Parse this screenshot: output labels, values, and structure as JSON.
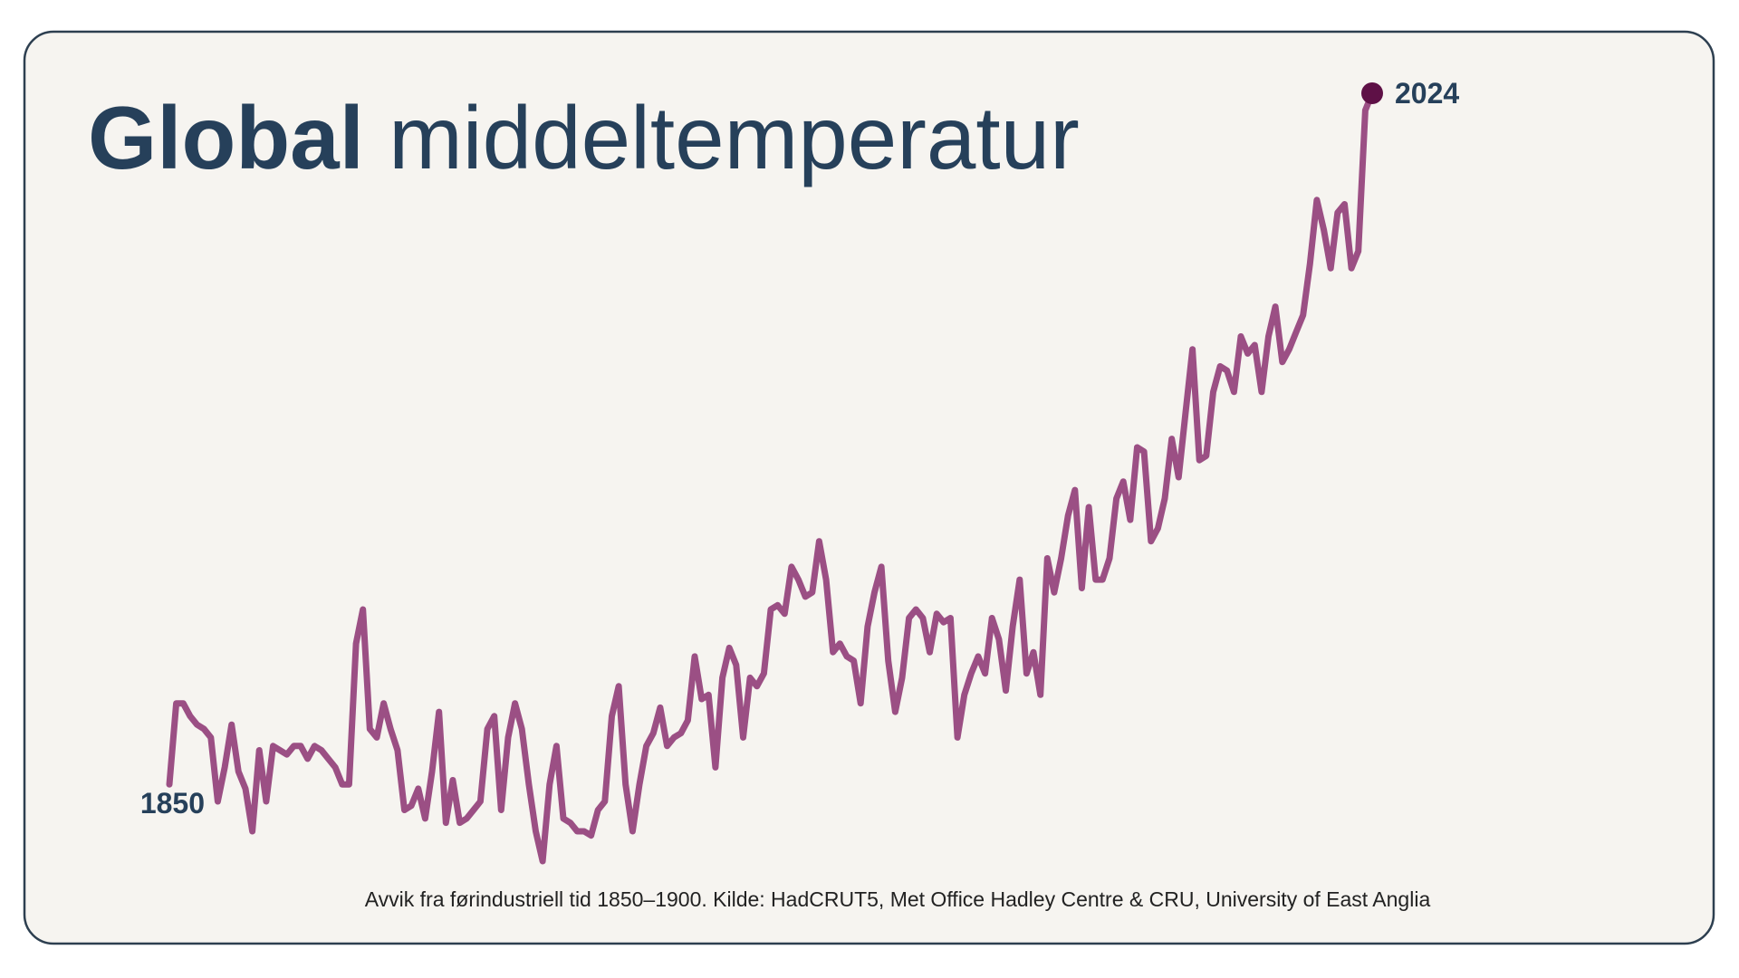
{
  "chart_data": {
    "type": "line",
    "title_bold": "Global",
    "title": "middeltemperatur",
    "note": "Avvik fra førindustriell tid 1850–1900. Kilde: HadCRUT5, Met Office Hadley Centre & CRU, University of East Anglia",
    "color": "#9b4f84",
    "end_color": "#5e1046",
    "x": [
      1850,
      1851,
      1852,
      1853,
      1854,
      1855,
      1856,
      1857,
      1858,
      1859,
      1860,
      1861,
      1862,
      1863,
      1864,
      1865,
      1866,
      1867,
      1868,
      1869,
      1870,
      1871,
      1872,
      1873,
      1874,
      1875,
      1876,
      1877,
      1878,
      1879,
      1880,
      1881,
      1882,
      1883,
      1884,
      1885,
      1886,
      1887,
      1888,
      1889,
      1890,
      1891,
      1892,
      1893,
      1894,
      1895,
      1896,
      1897,
      1898,
      1899,
      1900,
      1901,
      1902,
      1903,
      1904,
      1905,
      1906,
      1907,
      1908,
      1909,
      1910,
      1911,
      1912,
      1913,
      1914,
      1915,
      1916,
      1917,
      1918,
      1919,
      1920,
      1921,
      1922,
      1923,
      1924,
      1925,
      1926,
      1927,
      1928,
      1929,
      1930,
      1931,
      1932,
      1933,
      1934,
      1935,
      1936,
      1937,
      1938,
      1939,
      1940,
      1941,
      1942,
      1943,
      1944,
      1945,
      1946,
      1947,
      1948,
      1949,
      1950,
      1951,
      1952,
      1953,
      1954,
      1955,
      1956,
      1957,
      1958,
      1959,
      1960,
      1961,
      1962,
      1963,
      1964,
      1965,
      1966,
      1967,
      1968,
      1969,
      1970,
      1971,
      1972,
      1973,
      1974,
      1975,
      1976,
      1977,
      1978,
      1979,
      1980,
      1981,
      1982,
      1983,
      1984,
      1985,
      1986,
      1987,
      1988,
      1989,
      1990,
      1991,
      1992,
      1993,
      1994,
      1995,
      1996,
      1997,
      1998,
      1999,
      2000,
      2001,
      2002,
      2003,
      2004,
      2005,
      2006,
      2007,
      2008,
      2009,
      2010,
      2011,
      2012,
      2013,
      2014,
      2015,
      2016,
      2017,
      2018,
      2019,
      2020,
      2021,
      2022,
      2023,
      2024
    ],
    "values": [
      -0.08,
      0.11,
      0.11,
      0.08,
      0.06,
      0.05,
      0.03,
      -0.12,
      -0.04,
      0.06,
      -0.05,
      -0.09,
      -0.19,
      0.0,
      -0.12,
      0.01,
      0.0,
      -0.01,
      0.01,
      0.01,
      -0.02,
      0.01,
      0.0,
      -0.02,
      -0.04,
      -0.08,
      -0.08,
      0.25,
      0.33,
      0.05,
      0.03,
      0.11,
      0.05,
      0.0,
      -0.14,
      -0.13,
      -0.09,
      -0.16,
      -0.05,
      0.09,
      -0.17,
      -0.07,
      -0.17,
      -0.16,
      -0.14,
      -0.12,
      0.05,
      0.08,
      -0.14,
      0.03,
      0.11,
      0.05,
      -0.08,
      -0.19,
      -0.26,
      -0.08,
      0.01,
      -0.16,
      -0.17,
      -0.19,
      -0.19,
      -0.2,
      -0.14,
      -0.12,
      0.08,
      0.15,
      -0.08,
      -0.19,
      -0.08,
      0.01,
      0.04,
      0.1,
      0.01,
      0.03,
      0.04,
      0.07,
      0.22,
      0.12,
      0.13,
      -0.04,
      0.17,
      0.24,
      0.2,
      0.03,
      0.17,
      0.15,
      0.18,
      0.33,
      0.34,
      0.32,
      0.43,
      0.4,
      0.36,
      0.37,
      0.49,
      0.4,
      0.23,
      0.25,
      0.22,
      0.21,
      0.11,
      0.29,
      0.37,
      0.43,
      0.21,
      0.09,
      0.17,
      0.31,
      0.33,
      0.31,
      0.23,
      0.32,
      0.3,
      0.31,
      0.03,
      0.13,
      0.18,
      0.22,
      0.18,
      0.31,
      0.26,
      0.14,
      0.29,
      0.4,
      0.18,
      0.23,
      0.13,
      0.45,
      0.37,
      0.45,
      0.55,
      0.61,
      0.38,
      0.57,
      0.4,
      0.4,
      0.45,
      0.59,
      0.63,
      0.54,
      0.71,
      0.7,
      0.49,
      0.52,
      0.59,
      0.73,
      0.64,
      0.79,
      0.94,
      0.68,
      0.69,
      0.84,
      0.9,
      0.89,
      0.84,
      0.97,
      0.93,
      0.95,
      0.84,
      0.97,
      1.04,
      0.91,
      0.94,
      0.98,
      1.02,
      1.14,
      1.29,
      1.22,
      1.13,
      1.26,
      1.28,
      1.13,
      1.17,
      1.5,
      1.54
    ]
  }
}
